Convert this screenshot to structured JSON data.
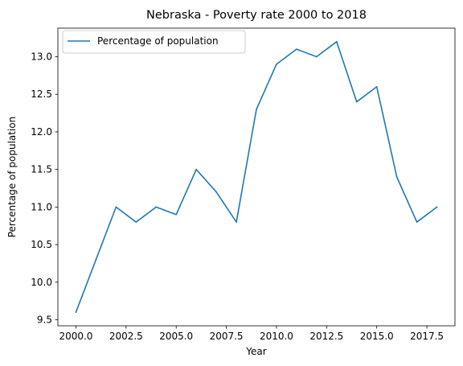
{
  "chart_data": {
    "type": "line",
    "title": "Nebraska - Poverty rate 2000 to 2018",
    "xlabel": "Year",
    "ylabel": "Percentage of population",
    "xlim": [
      1999.1,
      2018.9
    ],
    "ylim": [
      9.42,
      13.38
    ],
    "x_ticks": [
      2000.0,
      2002.5,
      2005.0,
      2007.5,
      2010.0,
      2012.5,
      2015.0,
      2017.5
    ],
    "x_tick_labels": [
      "2000.0",
      "2002.5",
      "2005.0",
      "2007.5",
      "2010.0",
      "2012.5",
      "2015.0",
      "2017.5"
    ],
    "y_ticks": [
      9.5,
      10.0,
      10.5,
      11.0,
      11.5,
      12.0,
      12.5,
      13.0
    ],
    "y_tick_labels": [
      "9.5",
      "10.0",
      "10.5",
      "11.0",
      "11.5",
      "12.0",
      "12.5",
      "13.0"
    ],
    "grid": false,
    "legend_position": "top-left",
    "series": [
      {
        "name": "Percentage of population",
        "color": "#1f77b4",
        "x": [
          2000,
          2001,
          2002,
          2003,
          2004,
          2005,
          2006,
          2007,
          2008,
          2009,
          2010,
          2011,
          2012,
          2013,
          2014,
          2015,
          2016,
          2017,
          2018
        ],
        "values": [
          9.6,
          10.3,
          11.0,
          10.8,
          11.0,
          10.9,
          11.5,
          11.2,
          10.8,
          12.3,
          12.9,
          13.1,
          13.0,
          13.2,
          12.4,
          12.6,
          11.4,
          10.8,
          11.0
        ]
      }
    ]
  }
}
